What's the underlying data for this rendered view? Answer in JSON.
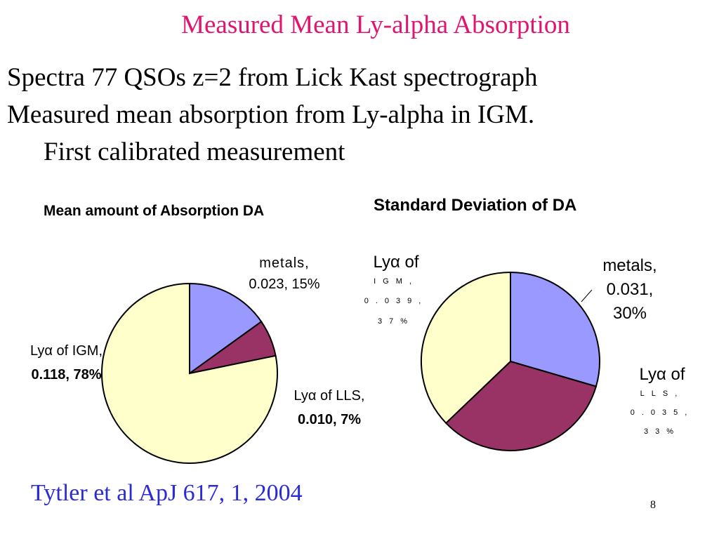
{
  "slide": {
    "title": "Measured Mean Ly-alpha Absorption",
    "bullets": [
      "Spectra 77 QSOs z=2 from Lick Kast spectrograph",
      "Measured mean absorption from Ly-alpha in IGM.",
      "First calibrated measurement"
    ],
    "citation": "Tytler et al ApJ 617, 1, 2004",
    "page_number": "8"
  },
  "chart_data": [
    {
      "type": "pie",
      "title": "Mean amount of Absorption DA",
      "slices": [
        {
          "name": "metals",
          "value": 0.023,
          "percent": 15,
          "color": "#9999ff",
          "label_line1": "metals,",
          "label_line2": "0.023, 15%"
        },
        {
          "name": "Lyα of LLS",
          "value": 0.01,
          "percent": 7,
          "color": "#993366",
          "label_line1": "Lyα of LLS,",
          "label_line2": "0.010, 7%"
        },
        {
          "name": "Lyα of IGM",
          "value": 0.118,
          "percent": 78,
          "color": "#ffffcc",
          "label_line1": "Lyα of IGM,",
          "label_line2": "0.118, 78%"
        }
      ]
    },
    {
      "type": "pie",
      "title": "Standard Deviation of DA",
      "slices": [
        {
          "name": "metals",
          "value": 0.031,
          "percent": 30,
          "color": "#9999ff",
          "label_line1": "metals,",
          "label_line2": "0.031,",
          "label_line3": "30%"
        },
        {
          "name": "Lyα of LLS",
          "value": 0.035,
          "percent": 33,
          "color": "#993366",
          "label_line1": "Lyα of",
          "label_line2": "LLS,",
          "label_line3": "0.035,",
          "label_line4": "33%"
        },
        {
          "name": "Lyα of IGM",
          "value": 0.039,
          "percent": 37,
          "color": "#ffffcc",
          "label_line1": "Lyα of",
          "label_line2": "IGM,",
          "label_line3": "0.039,",
          "label_line4": "37%"
        }
      ]
    }
  ]
}
